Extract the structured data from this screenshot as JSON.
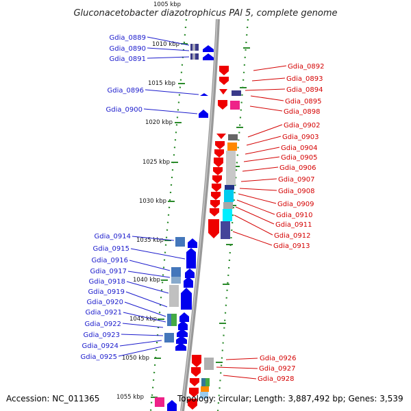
{
  "title": "Gluconacetobacter diazotrophicus PAl 5, complete genome",
  "top_kbp": "1005 kbp",
  "footer": {
    "accession": "Accession: NC_011365",
    "topology": "Topology: circular; Length: 3,887,492 bp; Genes: 3,539"
  },
  "colors": {
    "forward": "#0000ee",
    "reverse": "#ee0000",
    "forward_label": "#1a1acc",
    "reverse_label": "#d40000",
    "backbone": "#888888",
    "dots": "#228822"
  },
  "kbp_ticks": [
    "1010 kbp",
    "1015 kbp",
    "1020 kbp",
    "1025 kbp",
    "1030 kbp",
    "1035 kbp",
    "1040 kbp",
    "1045 kbp",
    "1050 kbp",
    "1055 kbp"
  ],
  "left_genes": [
    "Gdia_0889",
    "Gdia_0890",
    "Gdia_0891",
    "Gdia_0896",
    "Gdia_0900",
    "Gdia_0914",
    "Gdia_0915",
    "Gdia_0916",
    "Gdia_0917",
    "Gdia_0918",
    "Gdia_0919",
    "Gdia_0920",
    "Gdia_0921",
    "Gdia_0922",
    "Gdia_0923",
    "Gdia_0924",
    "Gdia_0925"
  ],
  "right_genes": [
    "Gdia_0892",
    "Gdia_0893",
    "Gdia_0894",
    "Gdia_0895",
    "Gdia_0898",
    "Gdia_0902",
    "Gdia_0903",
    "Gdia_0904",
    "Gdia_0905",
    "Gdia_0906",
    "Gdia_0907",
    "Gdia_0908",
    "Gdia_0909",
    "Gdia_0910",
    "Gdia_0911",
    "Gdia_0912",
    "Gdia_0913",
    "Gdia_0926",
    "Gdia_0927",
    "Gdia_0928"
  ]
}
